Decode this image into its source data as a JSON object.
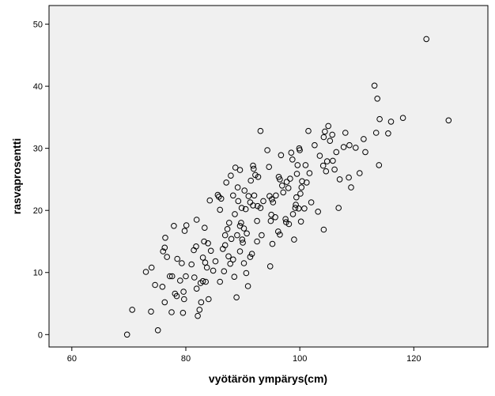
{
  "chart_data": {
    "type": "scatter",
    "xlabel": "vyötärön ympärys(cm)",
    "ylabel": "rasvaprosentti",
    "xlim": [
      56,
      133
    ],
    "ylim": [
      -2,
      53
    ],
    "xticks": [
      60,
      80,
      100,
      120
    ],
    "yticks": [
      0,
      10,
      20,
      30,
      40,
      50
    ],
    "grid": false,
    "colors": {
      "background": "#f0f0f0",
      "marker": "#000000"
    },
    "points": [
      [
        69.7,
        0.0
      ],
      [
        70.6,
        4.0
      ],
      [
        73.9,
        3.7
      ],
      [
        75.1,
        0.7
      ],
      [
        74.0,
        10.8
      ],
      [
        74.6,
        8.0
      ],
      [
        73.0,
        10.1
      ],
      [
        75.9,
        7.7
      ],
      [
        76.0,
        13.4
      ],
      [
        76.3,
        14.0
      ],
      [
        76.4,
        15.6
      ],
      [
        76.7,
        12.5
      ],
      [
        76.3,
        5.2
      ],
      [
        77.2,
        9.4
      ],
      [
        77.6,
        9.4
      ],
      [
        77.5,
        3.6
      ],
      [
        77.9,
        17.5
      ],
      [
        78.1,
        6.6
      ],
      [
        78.4,
        6.2
      ],
      [
        78.5,
        12.2
      ],
      [
        79.0,
        8.7
      ],
      [
        79.3,
        11.5
      ],
      [
        79.7,
        5.7
      ],
      [
        79.5,
        3.5
      ],
      [
        79.6,
        6.9
      ],
      [
        79.8,
        16.7
      ],
      [
        80.1,
        17.6
      ],
      [
        80.0,
        9.4
      ],
      [
        81.0,
        11.3
      ],
      [
        81.4,
        13.6
      ],
      [
        81.5,
        9.2
      ],
      [
        81.8,
        14.2
      ],
      [
        81.9,
        18.5
      ],
      [
        81.9,
        7.4
      ],
      [
        82.1,
        3.0
      ],
      [
        82.4,
        4.0
      ],
      [
        82.7,
        5.2
      ],
      [
        82.6,
        8.3
      ],
      [
        83.0,
        12.4
      ],
      [
        83.0,
        8.6
      ],
      [
        83.2,
        15.0
      ],
      [
        83.3,
        17.2
      ],
      [
        83.4,
        11.6
      ],
      [
        83.5,
        8.5
      ],
      [
        83.7,
        10.8
      ],
      [
        83.9,
        14.7
      ],
      [
        84.0,
        5.7
      ],
      [
        84.4,
        13.5
      ],
      [
        84.2,
        21.6
      ],
      [
        84.8,
        10.3
      ],
      [
        85.2,
        11.8
      ],
      [
        85.6,
        22.5
      ],
      [
        85.8,
        22.2
      ],
      [
        86.0,
        20.1
      ],
      [
        86.0,
        8.5
      ],
      [
        86.2,
        21.9
      ],
      [
        86.5,
        13.8
      ],
      [
        86.7,
        10.2
      ],
      [
        86.9,
        16.0
      ],
      [
        86.9,
        14.4
      ],
      [
        87.1,
        24.5
      ],
      [
        87.3,
        17.0
      ],
      [
        87.5,
        12.6
      ],
      [
        87.6,
        18.0
      ],
      [
        87.9,
        25.6
      ],
      [
        87.8,
        11.4
      ],
      [
        88.0,
        15.4
      ],
      [
        88.3,
        12.1
      ],
      [
        88.3,
        22.4
      ],
      [
        88.5,
        9.3
      ],
      [
        88.6,
        19.4
      ],
      [
        88.7,
        26.9
      ],
      [
        88.9,
        6.0
      ],
      [
        89.0,
        16.0
      ],
      [
        89.1,
        23.7
      ],
      [
        89.2,
        21.5
      ],
      [
        89.5,
        13.4
      ],
      [
        89.5,
        26.5
      ],
      [
        89.5,
        17.5
      ],
      [
        89.7,
        18.0
      ],
      [
        89.8,
        20.4
      ],
      [
        89.9,
        15.3
      ],
      [
        90.0,
        14.8
      ],
      [
        90.2,
        17.1
      ],
      [
        90.2,
        11.5
      ],
      [
        90.3,
        23.2
      ],
      [
        90.5,
        20.2
      ],
      [
        90.6,
        9.9
      ],
      [
        90.7,
        16.3
      ],
      [
        90.9,
        7.8
      ],
      [
        91.0,
        22.3
      ],
      [
        91.3,
        12.5
      ],
      [
        91.3,
        21.3
      ],
      [
        91.4,
        24.8
      ],
      [
        91.6,
        13.0
      ],
      [
        91.8,
        27.2
      ],
      [
        91.8,
        20.8
      ],
      [
        91.9,
        26.7
      ],
      [
        92.0,
        22.4
      ],
      [
        92.2,
        25.7
      ],
      [
        92.5,
        18.3
      ],
      [
        92.5,
        15.0
      ],
      [
        92.6,
        20.7
      ],
      [
        92.7,
        25.4
      ],
      [
        93.1,
        32.8
      ],
      [
        93.1,
        20.4
      ],
      [
        93.3,
        16.0
      ],
      [
        93.6,
        21.5
      ],
      [
        94.3,
        29.7
      ],
      [
        94.6,
        27.0
      ],
      [
        94.7,
        22.3
      ],
      [
        94.8,
        11.0
      ],
      [
        94.9,
        18.3
      ],
      [
        95.0,
        19.3
      ],
      [
        95.1,
        21.8
      ],
      [
        95.2,
        14.6
      ],
      [
        95.3,
        21.3
      ],
      [
        95.7,
        18.9
      ],
      [
        95.8,
        22.4
      ],
      [
        96.2,
        16.6
      ],
      [
        96.3,
        25.4
      ],
      [
        96.5,
        25.0
      ],
      [
        96.5,
        16.1
      ],
      [
        96.7,
        28.9
      ],
      [
        96.9,
        24.0
      ],
      [
        97.1,
        22.9
      ],
      [
        97.5,
        18.6
      ],
      [
        97.6,
        18.1
      ],
      [
        97.7,
        24.6
      ],
      [
        98.0,
        23.6
      ],
      [
        98.1,
        17.8
      ],
      [
        98.3,
        25.1
      ],
      [
        98.5,
        29.3
      ],
      [
        98.7,
        28.2
      ],
      [
        98.8,
        19.4
      ],
      [
        99.0,
        15.3
      ],
      [
        99.2,
        20.4
      ],
      [
        99.3,
        20.9
      ],
      [
        99.4,
        22.1
      ],
      [
        99.5,
        25.9
      ],
      [
        99.6,
        27.3
      ],
      [
        99.8,
        20.3
      ],
      [
        99.9,
        30.0
      ],
      [
        100.0,
        29.7
      ],
      [
        100.1,
        22.7
      ],
      [
        100.3,
        23.7
      ],
      [
        100.2,
        18.2
      ],
      [
        100.4,
        24.7
      ],
      [
        100.8,
        20.3
      ],
      [
        101.0,
        27.3
      ],
      [
        101.2,
        24.5
      ],
      [
        101.5,
        32.8
      ],
      [
        101.7,
        26.0
      ],
      [
        102.0,
        21.3
      ],
      [
        102.6,
        30.5
      ],
      [
        103.2,
        19.8
      ],
      [
        103.5,
        28.8
      ],
      [
        104.1,
        27.2
      ],
      [
        104.2,
        31.8
      ],
      [
        104.2,
        16.9
      ],
      [
        104.4,
        32.7
      ],
      [
        104.6,
        26.3
      ],
      [
        104.8,
        27.9
      ],
      [
        105.0,
        33.6
      ],
      [
        105.3,
        31.2
      ],
      [
        105.7,
        32.2
      ],
      [
        105.8,
        28.0
      ],
      [
        106.1,
        26.6
      ],
      [
        106.4,
        29.4
      ],
      [
        106.8,
        20.4
      ],
      [
        107.0,
        25.0
      ],
      [
        107.7,
        30.2
      ],
      [
        108.0,
        32.5
      ],
      [
        108.6,
        25.3
      ],
      [
        108.7,
        30.5
      ],
      [
        109.0,
        23.7
      ],
      [
        109.8,
        30.1
      ],
      [
        110.5,
        26.0
      ],
      [
        111.2,
        31.5
      ],
      [
        111.5,
        29.4
      ],
      [
        113.1,
        40.1
      ],
      [
        113.6,
        38.0
      ],
      [
        113.9,
        27.3
      ],
      [
        113.4,
        32.5
      ],
      [
        114.0,
        34.7
      ],
      [
        115.5,
        32.4
      ],
      [
        116.0,
        34.3
      ],
      [
        118.1,
        34.9
      ],
      [
        122.2,
        47.6
      ],
      [
        126.1,
        34.5
      ]
    ]
  }
}
